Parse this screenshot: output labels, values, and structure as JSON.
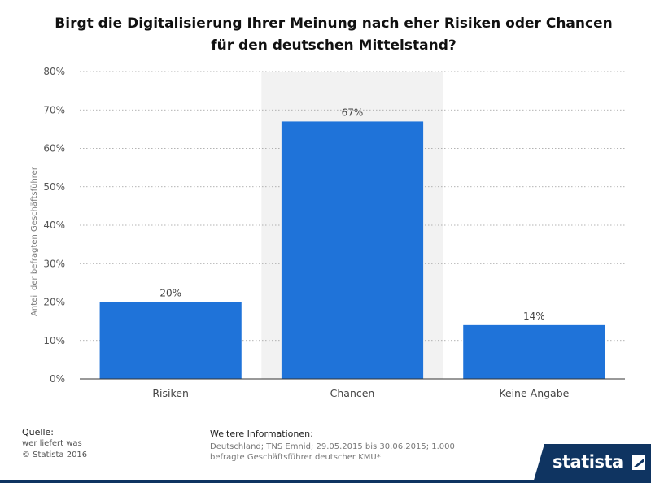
{
  "chart_data": {
    "type": "bar",
    "title": "Birgt die Digitalisierung Ihrer Meinung nach eher Risiken oder Chancen für den deutschen Mittelstand?",
    "ylabel": "Anteil der befragten Geschäftsführer",
    "xlabel": "",
    "categories": [
      "Risiken",
      "Chancen",
      "Keine Angabe"
    ],
    "values": [
      20,
      67,
      14
    ],
    "value_labels": [
      "20%",
      "67%",
      "14%"
    ],
    "ylim": [
      0,
      80
    ],
    "yticks": [
      0,
      10,
      20,
      30,
      40,
      50,
      60,
      70,
      80
    ],
    "ytick_labels": [
      "0%",
      "10%",
      "20%",
      "30%",
      "40%",
      "50%",
      "60%",
      "70%",
      "80%"
    ],
    "highlight_category": "Chancen",
    "grid": true,
    "bar_color": "#1f73d9",
    "highlight_color": "#f2f2f2"
  },
  "source": {
    "heading": "Quelle:",
    "lines": [
      "wer liefert was",
      "© Statista 2016"
    ]
  },
  "info": {
    "heading": "Weitere Informationen:",
    "text": "Deutschland; TNS Emnid; 29.05.2015 bis 30.06.2015; 1.000 befragte Geschäftsführer deutscher KMU*"
  },
  "brand": {
    "wordmark": "statista",
    "color": "#0f3461"
  }
}
